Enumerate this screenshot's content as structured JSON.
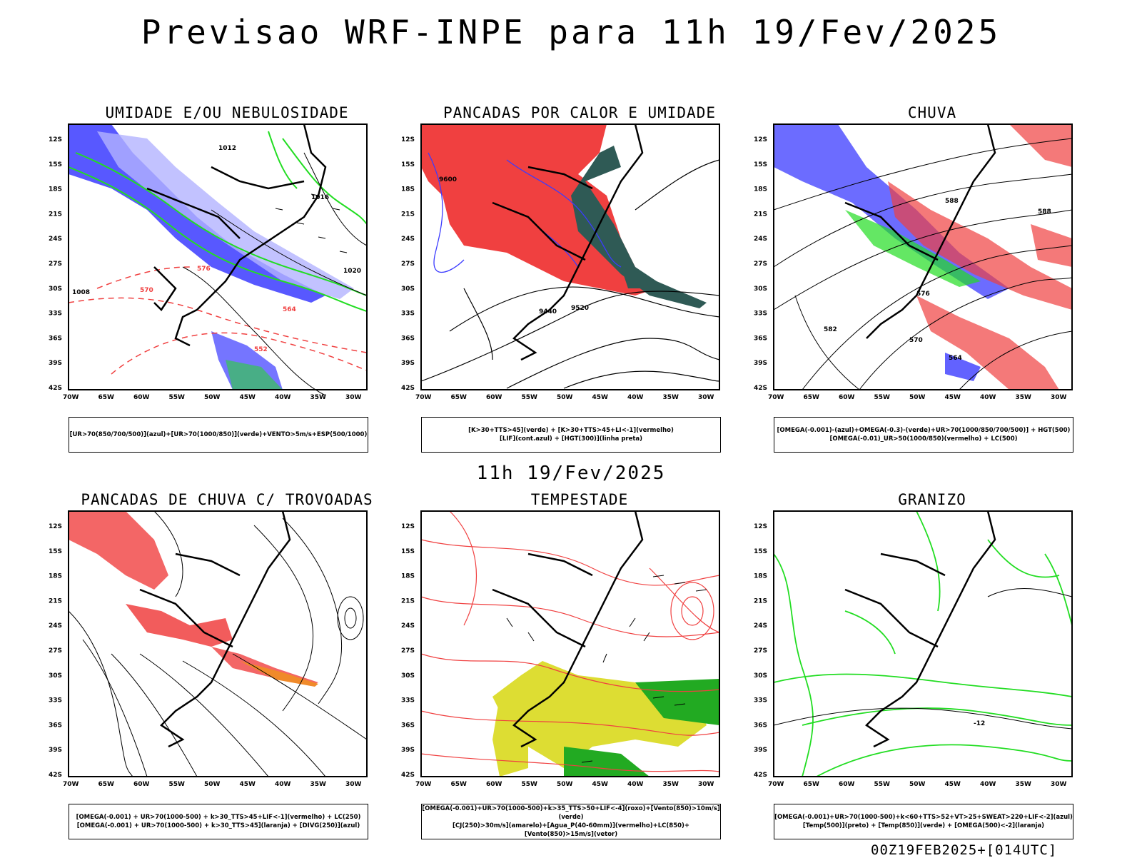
{
  "header": {
    "title": "Previsao WRF-INPE  para 11h 19/Fev/2025"
  },
  "middle": {
    "subtitle": "11h 19/Fev/2025"
  },
  "footer": {
    "run": "00Z19FEB2025+[014UTC]"
  },
  "axes": {
    "lat_labels": [
      "12S",
      "15S",
      "18S",
      "21S",
      "24S",
      "27S",
      "30S",
      "33S",
      "36S",
      "39S",
      "42S"
    ],
    "lon_labels": [
      "70W",
      "65W",
      "60W",
      "55W",
      "50W",
      "45W",
      "40W",
      "35W",
      "30W"
    ]
  },
  "colors": {
    "blue": "#3b3bff",
    "lightblue": "#b3b3ff",
    "green": "#22dd22",
    "red": "#f04040",
    "darkteal": "#2f5a55",
    "yellow": "#dddd33",
    "orange": "#f08a2a"
  },
  "panels": [
    {
      "id": "umidade",
      "title": "UMIDADE E/OU NEBULOSIDADE",
      "legend": [
        "[UR>70(850/700/500)](azul)+[UR>70(1000/850)](verde)+VENTO>5m/s+ESP(500/1000)"
      ]
    },
    {
      "id": "pancadas-calor",
      "title": "PANCADAS POR CALOR E UMIDADE",
      "legend": [
        "[K>30+TTS>45](verde) + [K>30+TTS>45+LI<-1](vermelho)",
        "[LIF](cont.azul) + [HGT(300)](linha preta)"
      ]
    },
    {
      "id": "chuva",
      "title": "CHUVA",
      "legend": [
        "[OMEGA(-0.001)-(azul)+OMEGA(-0.3)-(verde)+UR>70(1000/850/700/500)] + HGT(500)",
        "[OMEGA(-0.01)_UR>50(1000/850)(vermelho) + LC(500)"
      ]
    },
    {
      "id": "trovoadas",
      "title": "PANCADAS DE CHUVA C/ TROVOADAS",
      "legend": [
        "[OMEGA(-0.001) + UR>70(1000-500) + k>30_TTS>45+LIF<-1](vermelho) + LC(250)",
        "[OMEGA(-0.001) + UR>70(1000-500) + k>30_TTS>45](laranja) + [DIVG(250)](azul)"
      ]
    },
    {
      "id": "tempestade",
      "title": "TEMPESTADE",
      "legend": [
        "[OMEGA(-0.001)+UR>70(1000-500)+k>35_TTS>50+LIF<-4](roxo)+[Vento(850)>10m/s](verde)",
        "[CJ(250)>30m/s](amarelo)+[Agua_P(40-60mm)](vermelho)+LC(850)+[Vento(850)>15m/s](vetor)"
      ]
    },
    {
      "id": "granizo",
      "title": "GRANIZO",
      "legend": [
        "[OMEGA(-0.001)+UR>70(1000-500)+k<60+TTS>52+VT>25+SWEAT>220+LIF<-2](azul)",
        "[Temp(500)](preto) + [Temp(850)](verde) + [OMEGA(500)<-2](laranja)"
      ]
    }
  ],
  "contour_labels": {
    "umidade": [
      "1012",
      "1016",
      "1020",
      "576",
      "570",
      "564",
      "552",
      "1008"
    ],
    "pancadas-calor": [
      "9600",
      "9520",
      "9440"
    ],
    "chuva": [
      "588",
      "582",
      "576",
      "570",
      "564"
    ],
    "granizo": [
      "-12"
    ]
  }
}
